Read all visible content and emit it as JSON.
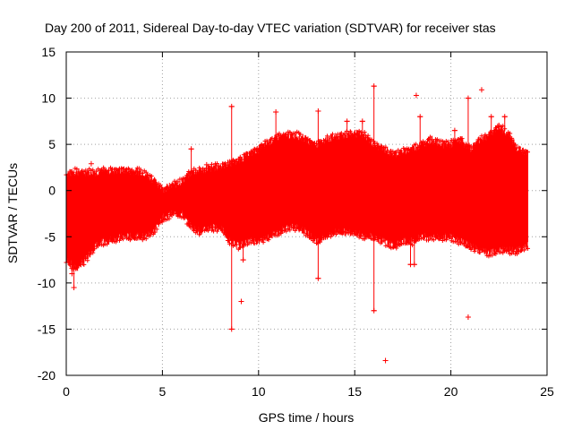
{
  "chart_data": {
    "type": "scatter",
    "title": "Day 200 of 2011, Sidereal Day-to-day VTEC variation (SDTVAR) for receiver stas",
    "xlabel": "GPS time / hours",
    "ylabel": "SDTVAR / TECUs",
    "xlim": [
      0,
      25
    ],
    "ylim": [
      -20,
      15
    ],
    "xticks": [
      0,
      5,
      10,
      15,
      20,
      25
    ],
    "yticks": [
      -20,
      -15,
      -10,
      -5,
      0,
      5,
      10,
      15
    ],
    "grid": true,
    "color": "#ff0000",
    "marker": "plus",
    "series": [
      {
        "name": "SDTVAR",
        "envelope_upper": [
          [
            0.0,
            1.8
          ],
          [
            0.5,
            2.0
          ],
          [
            1.0,
            2.0
          ],
          [
            1.5,
            2.0
          ],
          [
            2.0,
            2.1
          ],
          [
            3.0,
            2.2
          ],
          [
            4.0,
            2.0
          ],
          [
            4.5,
            1.2
          ],
          [
            5.0,
            0.2
          ],
          [
            5.5,
            0.5
          ],
          [
            6.0,
            1.0
          ],
          [
            6.5,
            2.0
          ],
          [
            7.0,
            2.2
          ],
          [
            7.5,
            2.4
          ],
          [
            8.0,
            2.6
          ],
          [
            8.5,
            3.0
          ],
          [
            9.0,
            3.2
          ],
          [
            9.5,
            4.0
          ],
          [
            10.0,
            4.5
          ],
          [
            10.5,
            5.2
          ],
          [
            11.0,
            5.8
          ],
          [
            11.5,
            6.0
          ],
          [
            12.0,
            6.0
          ],
          [
            12.5,
            5.5
          ],
          [
            13.0,
            5.0
          ],
          [
            13.5,
            5.5
          ],
          [
            14.0,
            5.8
          ],
          [
            15.0,
            6.2
          ],
          [
            15.5,
            6.0
          ],
          [
            16.0,
            5.0
          ],
          [
            16.5,
            4.5
          ],
          [
            17.0,
            4.0
          ],
          [
            17.5,
            4.2
          ],
          [
            18.0,
            4.5
          ],
          [
            18.5,
            5.0
          ],
          [
            19.0,
            5.5
          ],
          [
            19.5,
            5.0
          ],
          [
            20.0,
            5.0
          ],
          [
            20.5,
            5.5
          ],
          [
            21.0,
            4.5
          ],
          [
            21.5,
            5.5
          ],
          [
            22.0,
            6.0
          ],
          [
            22.5,
            7.0
          ],
          [
            23.0,
            6.0
          ],
          [
            23.5,
            4.5
          ],
          [
            24.0,
            4.0
          ]
        ],
        "envelope_lower": [
          [
            0.0,
            -7.5
          ],
          [
            0.5,
            -8.5
          ],
          [
            1.0,
            -7.5
          ],
          [
            1.5,
            -6.0
          ],
          [
            2.0,
            -5.5
          ],
          [
            3.0,
            -5.0
          ],
          [
            4.0,
            -5.0
          ],
          [
            4.5,
            -4.5
          ],
          [
            5.0,
            -3.0
          ],
          [
            5.5,
            -2.5
          ],
          [
            6.0,
            -2.5
          ],
          [
            6.5,
            -4.0
          ],
          [
            7.0,
            -4.5
          ],
          [
            7.5,
            -4.0
          ],
          [
            8.0,
            -4.0
          ],
          [
            8.5,
            -5.5
          ],
          [
            9.0,
            -6.0
          ],
          [
            9.5,
            -5.5
          ],
          [
            10.0,
            -5.5
          ],
          [
            10.5,
            -5.0
          ],
          [
            11.0,
            -4.5
          ],
          [
            11.5,
            -4.0
          ],
          [
            12.0,
            -4.0
          ],
          [
            12.5,
            -4.5
          ],
          [
            13.0,
            -5.5
          ],
          [
            13.5,
            -5.0
          ],
          [
            14.0,
            -4.5
          ],
          [
            15.0,
            -4.5
          ],
          [
            15.5,
            -5.0
          ],
          [
            16.0,
            -5.0
          ],
          [
            16.5,
            -5.5
          ],
          [
            17.0,
            -6.0
          ],
          [
            17.5,
            -5.5
          ],
          [
            18.0,
            -5.5
          ],
          [
            18.5,
            -5.0
          ],
          [
            19.0,
            -5.0
          ],
          [
            19.5,
            -5.0
          ],
          [
            20.0,
            -5.0
          ],
          [
            20.5,
            -5.5
          ],
          [
            21.0,
            -6.0
          ],
          [
            21.5,
            -6.5
          ],
          [
            22.0,
            -6.8
          ],
          [
            22.5,
            -6.5
          ],
          [
            23.0,
            -6.5
          ],
          [
            23.5,
            -6.5
          ],
          [
            24.0,
            -6.0
          ]
        ],
        "spikes": [
          [
            0.4,
            -10.5
          ],
          [
            0.3,
            -9.0
          ],
          [
            1.3,
            2.9
          ],
          [
            6.5,
            4.5
          ],
          [
            7.3,
            2.8
          ],
          [
            8.6,
            9.1
          ],
          [
            8.6,
            -15.0
          ],
          [
            9.1,
            -12.0
          ],
          [
            9.2,
            -7.5
          ],
          [
            10.9,
            8.5
          ],
          [
            13.1,
            8.6
          ],
          [
            13.1,
            -9.5
          ],
          [
            14.6,
            7.5
          ],
          [
            15.4,
            7.5
          ],
          [
            16.0,
            11.3
          ],
          [
            16.0,
            -13.0
          ],
          [
            16.6,
            -18.4
          ],
          [
            18.1,
            -8.0
          ],
          [
            18.2,
            10.3
          ],
          [
            18.4,
            8.0
          ],
          [
            20.9,
            10.0
          ],
          [
            20.9,
            -13.7
          ],
          [
            21.6,
            10.9
          ],
          [
            22.1,
            8.0
          ],
          [
            22.8,
            8.0
          ],
          [
            20.2,
            6.5
          ],
          [
            17.9,
            -8.0
          ]
        ]
      }
    ]
  }
}
